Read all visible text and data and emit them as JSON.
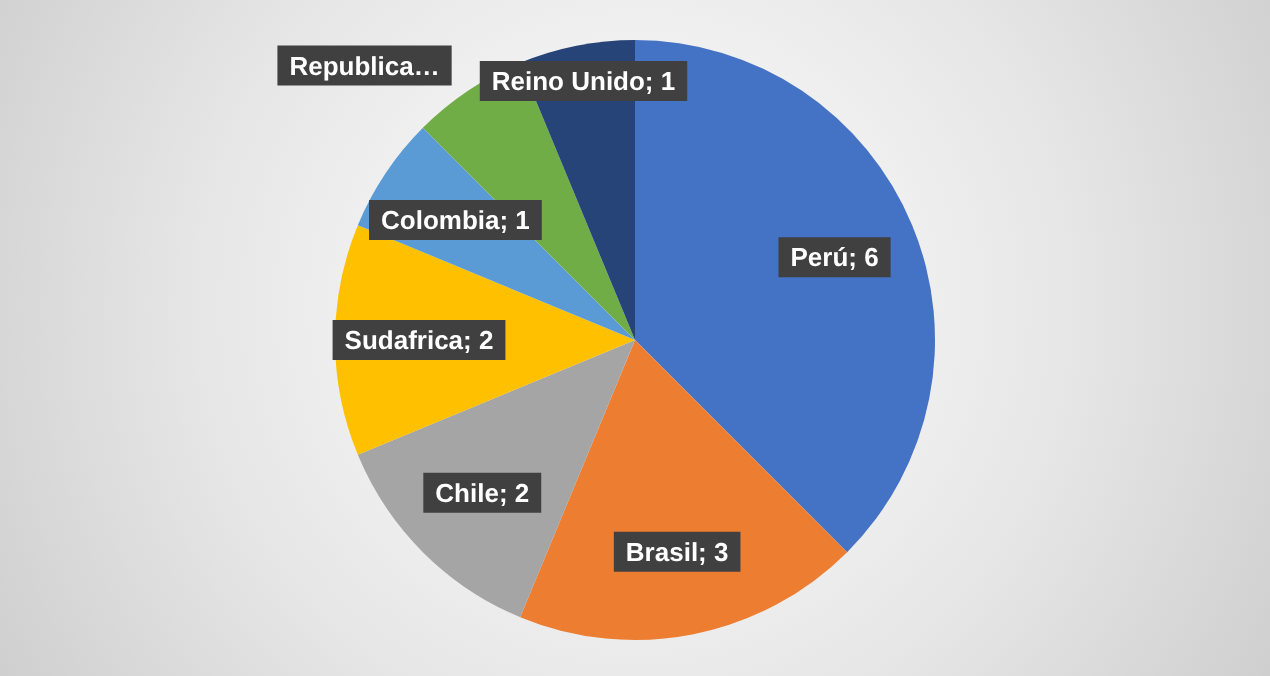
{
  "chart_data": {
    "type": "pie",
    "categories": [
      "Perú",
      "Brasil",
      "Chile",
      "Sudafrica",
      "Colombia",
      "Republica…",
      "Reino Unido"
    ],
    "values": [
      6,
      3,
      2,
      2,
      1,
      1,
      1
    ],
    "value_labels": [
      "6",
      "3",
      "2",
      "2",
      "1",
      null,
      "1"
    ],
    "colors": [
      "#4472c4",
      "#ed7d31",
      "#a5a5a5",
      "#ffc000",
      "#5b9bd5",
      "#70ad47",
      "#264478"
    ],
    "legend": false
  }
}
